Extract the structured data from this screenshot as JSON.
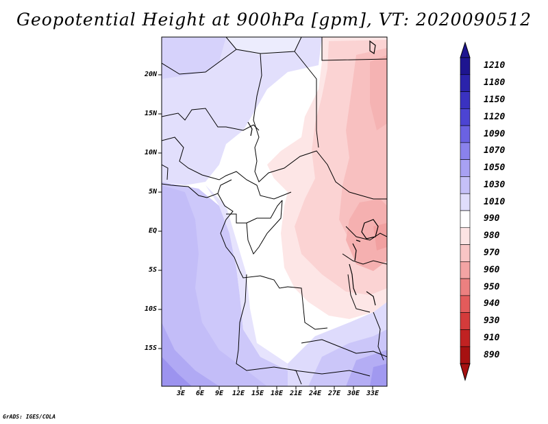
{
  "title": "Geopotential Height at 900hPa [gpm], VT: 2020090512",
  "lat_labels": [
    "20N",
    "15N",
    "10N",
    "5N",
    "EQ",
    "5S",
    "10S",
    "15S"
  ],
  "lon_labels": [
    "3E",
    "6E",
    "9E",
    "12E",
    "15E",
    "18E",
    "21E",
    "24E",
    "27E",
    "30E",
    "33E"
  ],
  "colorbar": {
    "levels": [
      "1210",
      "1180",
      "1150",
      "1120",
      "1090",
      "1070",
      "1050",
      "1030",
      "1010",
      "990",
      "980",
      "970",
      "960",
      "950",
      "940",
      "930",
      "910",
      "890"
    ],
    "colors": [
      "#1e1590",
      "#2b23ab",
      "#3a32c1",
      "#4c44d3",
      "#6b62e2",
      "#8a82ec",
      "#a8a1f3",
      "#c5c0f8",
      "#e0ddfc",
      "#ffffff",
      "#fde4e4",
      "#f9c5c5",
      "#f4a4a4",
      "#ec8080",
      "#e35b5b",
      "#d43b3b",
      "#c02222",
      "#a61111"
    ]
  },
  "credit": "GrADS: IGES/COLA"
}
